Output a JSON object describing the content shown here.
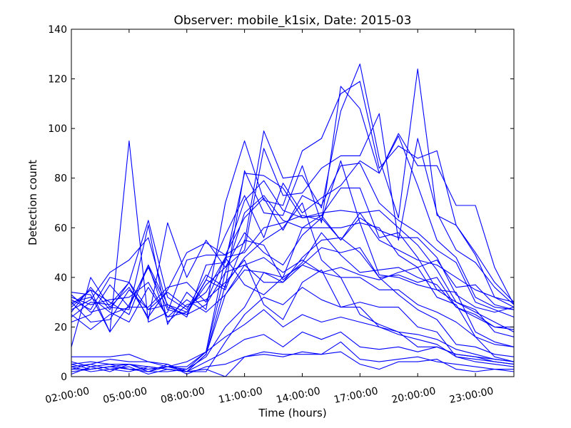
{
  "chart_data": {
    "type": "line",
    "title": "Observer: mobile_k1six, Date: 2015-03",
    "xlabel": "Time (hours)",
    "ylabel": "Detection count",
    "x_ticks": [
      "02:00:00",
      "05:00:00",
      "08:00:00",
      "11:00:00",
      "14:00:00",
      "17:00:00",
      "20:00:00",
      "23:00:00"
    ],
    "y_ticks": [
      "0",
      "20",
      "40",
      "60",
      "80",
      "100",
      "120",
      "140"
    ],
    "xlim": [
      1,
      24
    ],
    "ylim": [
      0,
      140
    ],
    "line_color": "#0000ff",
    "x": [
      1,
      2,
      3,
      4,
      5,
      6,
      7,
      8,
      9,
      10,
      11,
      12,
      13,
      14,
      15,
      16,
      17,
      18,
      19,
      20,
      21,
      22,
      23,
      24
    ],
    "series": [
      {
        "values": [
          29,
          35,
          18,
          95,
          22,
          26,
          47,
          49,
          49,
          54,
          99,
          80,
          81,
          68,
          107,
          126,
          88,
          64,
          124,
          65,
          61,
          49,
          32,
          28
        ]
      },
      {
        "values": [
          31,
          27,
          40,
          38,
          63,
          32,
          27,
          41,
          36,
          83,
          66,
          65,
          85,
          62,
          117,
          108,
          82,
          98,
          85,
          85,
          69,
          69,
          44,
          29
        ]
      },
      {
        "values": [
          33,
          26,
          28,
          27,
          61,
          21,
          34,
          27,
          70,
          95,
          71,
          69,
          91,
          96,
          114,
          119,
          84,
          93,
          88,
          91,
          61,
          50,
          38,
          30
        ]
      },
      {
        "values": [
          26,
          36,
          27,
          38,
          23,
          62,
          40,
          55,
          44,
          51,
          92,
          73,
          74,
          84,
          89,
          89,
          106,
          55,
          96,
          66,
          51,
          46,
          36,
          29
        ]
      },
      {
        "values": [
          27,
          31,
          42,
          47,
          56,
          28,
          25,
          39,
          57,
          73,
          56,
          78,
          66,
          72,
          77,
          87,
          82,
          97,
          77,
          55,
          48,
          32,
          28,
          27
        ]
      },
      {
        "values": [
          12,
          40,
          28,
          36,
          24,
          35,
          50,
          54,
          49,
          64,
          72,
          59,
          73,
          69,
          85,
          86,
          70,
          63,
          58,
          51,
          46,
          30,
          27,
          24
        ]
      },
      {
        "values": [
          22,
          25,
          37,
          28,
          45,
          29,
          24,
          45,
          46,
          82,
          81,
          76,
          64,
          66,
          67,
          66,
          67,
          60,
          53,
          43,
          30,
          26,
          22,
          18
        ]
      },
      {
        "values": [
          30,
          22,
          23,
          35,
          27,
          34,
          28,
          34,
          48,
          71,
          79,
          67,
          64,
          65,
          76,
          76,
          56,
          58,
          48,
          35,
          34,
          18,
          14,
          12
        ]
      },
      {
        "values": [
          8,
          8,
          8,
          9,
          6,
          4,
          4,
          10,
          48,
          50,
          60,
          62,
          65,
          63,
          87,
          62,
          60,
          49,
          44,
          32,
          29,
          16,
          8,
          6
        ]
      },
      {
        "values": [
          5,
          6,
          5,
          5,
          3,
          4,
          6,
          10,
          42,
          66,
          73,
          63,
          60,
          60,
          60,
          62,
          41,
          40,
          37,
          35,
          30,
          27,
          18,
          16
        ]
      },
      {
        "values": [
          4,
          5,
          7,
          6,
          6,
          5,
          2,
          9,
          37,
          48,
          55,
          60,
          70,
          47,
          40,
          40,
          35,
          35,
          29,
          26,
          22,
          16,
          13,
          12
        ]
      },
      {
        "values": [
          3,
          3,
          4,
          5,
          4,
          3,
          2,
          9,
          33,
          45,
          38,
          38,
          48,
          55,
          56,
          50,
          40,
          33,
          27,
          23,
          13,
          12,
          9,
          8
        ]
      },
      {
        "values": [
          2,
          3,
          4,
          3,
          3,
          4,
          3,
          8,
          20,
          28,
          42,
          38,
          45,
          42,
          40,
          25,
          21,
          18,
          17,
          15,
          11,
          9,
          7,
          6
        ]
      },
      {
        "values": [
          1,
          4,
          5,
          3,
          2,
          4,
          2,
          2,
          14,
          25,
          32,
          29,
          36,
          31,
          28,
          30,
          28,
          28,
          20,
          18,
          8,
          6,
          5,
          4
        ]
      },
      {
        "values": [
          6,
          4,
          2,
          5,
          2,
          2,
          3,
          10,
          16,
          21,
          27,
          20,
          25,
          22,
          24,
          22,
          20,
          17,
          15,
          13,
          8,
          7,
          6,
          5
        ]
      },
      {
        "values": [
          3,
          5,
          3,
          2,
          4,
          3,
          2,
          6,
          10,
          15,
          17,
          12,
          18,
          15,
          18,
          12,
          11,
          12,
          10,
          12,
          9,
          8,
          6,
          5
        ]
      },
      {
        "values": [
          5,
          3,
          4,
          3,
          2,
          5,
          1,
          4,
          5,
          8,
          9,
          8,
          10,
          9,
          14,
          7,
          6,
          7,
          8,
          6,
          5,
          4,
          3,
          2
        ]
      },
      {
        "values": [
          4,
          2,
          3,
          4,
          1,
          3,
          2,
          3,
          0,
          8,
          10,
          9,
          9,
          9,
          10,
          5,
          3,
          6,
          6,
          7,
          3,
          2,
          3,
          3
        ]
      },
      {
        "values": [
          34,
          33,
          18,
          29,
          44,
          27,
          25,
          29,
          42,
          45,
          48,
          42,
          47,
          42,
          44,
          41,
          39,
          42,
          44,
          47,
          36,
          37,
          29,
          27
        ]
      },
      {
        "values": [
          28,
          35,
          30,
          25,
          45,
          22,
          29,
          31,
          38,
          47,
          29,
          23,
          38,
          43,
          28,
          28,
          20,
          18,
          12,
          12,
          9,
          8,
          7,
          6
        ]
      },
      {
        "values": [
          25,
          19,
          25,
          28,
          28,
          36,
          38,
          30,
          48,
          37,
          33,
          40,
          45,
          52,
          50,
          52,
          40,
          41,
          38,
          40,
          28,
          25,
          20,
          19
        ]
      },
      {
        "values": [
          30,
          32,
          26,
          22,
          36,
          24,
          31,
          26,
          33,
          43,
          42,
          40,
          60,
          65,
          55,
          66,
          55,
          51,
          47,
          45,
          40,
          35,
          32,
          30
        ]
      },
      {
        "values": [
          24,
          30,
          29,
          38,
          27,
          29,
          26,
          39,
          35,
          55,
          53,
          39,
          46,
          58,
          49,
          42,
          43,
          44,
          40,
          37,
          28,
          24,
          20,
          20
        ]
      },
      {
        "values": [
          32,
          29,
          31,
          32,
          38,
          24,
          26,
          37,
          44,
          58,
          50,
          45,
          57,
          64,
          55,
          64,
          59,
          56,
          56,
          48,
          33,
          28,
          26,
          28
        ]
      }
    ]
  }
}
